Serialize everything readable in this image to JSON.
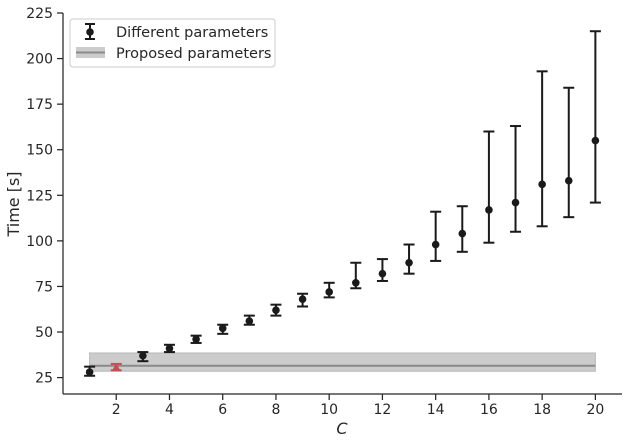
{
  "chart_data": {
    "type": "scatter",
    "title": "",
    "xlabel": "C",
    "ylabel": "Time [s]",
    "xlim": [
      0.0,
      21.0
    ],
    "ylim": [
      16,
      225
    ],
    "xticks": [
      "2",
      "4",
      "6",
      "8",
      "10",
      "12",
      "14",
      "16",
      "18",
      "20"
    ],
    "yticks": [
      "25",
      "50",
      "75",
      "100",
      "125",
      "150",
      "175",
      "200",
      "225"
    ],
    "grid": false,
    "legend": {
      "position": "top-left",
      "entries": [
        "Different parameters",
        "Proposed parameters"
      ]
    },
    "series": [
      {
        "name": "Different parameters",
        "marker": "circle",
        "color": "#1a1a1a",
        "points": [
          {
            "x": 1,
            "y": 28,
            "ylow": 26,
            "yhigh": 31
          },
          {
            "x": 3,
            "y": 37,
            "ylow": 34,
            "yhigh": 39
          },
          {
            "x": 4,
            "y": 41,
            "ylow": 39,
            "yhigh": 43
          },
          {
            "x": 5,
            "y": 46,
            "ylow": 44,
            "yhigh": 48
          },
          {
            "x": 6,
            "y": 52,
            "ylow": 49,
            "yhigh": 54
          },
          {
            "x": 7,
            "y": 56,
            "ylow": 54,
            "yhigh": 59
          },
          {
            "x": 8,
            "y": 62,
            "ylow": 59,
            "yhigh": 65
          },
          {
            "x": 9,
            "y": 68,
            "ylow": 64,
            "yhigh": 71
          },
          {
            "x": 10,
            "y": 72,
            "ylow": 69,
            "yhigh": 77
          },
          {
            "x": 11,
            "y": 77,
            "ylow": 74,
            "yhigh": 88
          },
          {
            "x": 12,
            "y": 82,
            "ylow": 78,
            "yhigh": 90
          },
          {
            "x": 13,
            "y": 88,
            "ylow": 82,
            "yhigh": 98
          },
          {
            "x": 14,
            "y": 98,
            "ylow": 89,
            "yhigh": 116
          },
          {
            "x": 15,
            "y": 104,
            "ylow": 94,
            "yhigh": 119
          },
          {
            "x": 16,
            "y": 117,
            "ylow": 99,
            "yhigh": 160
          },
          {
            "x": 17,
            "y": 121,
            "ylow": 105,
            "yhigh": 163
          },
          {
            "x": 18,
            "y": 131,
            "ylow": 108,
            "yhigh": 193
          },
          {
            "x": 19,
            "y": 133,
            "ylow": 113,
            "yhigh": 184
          },
          {
            "x": 20,
            "y": 155,
            "ylow": 121,
            "yhigh": 215
          }
        ]
      },
      {
        "name": "Proposed parameters",
        "marker": "triangle",
        "color": "#c44e52",
        "points": [
          {
            "x": 2,
            "y": 30.5,
            "ylow": 29,
            "yhigh": 32.5
          }
        ],
        "mean_line": {
          "y": 31.5,
          "from_x": 1,
          "to_x": 20,
          "color": "#8a8a8a"
        },
        "band": {
          "ylow": 28.5,
          "yhigh": 38.5,
          "from_x": 1,
          "to_x": 20,
          "color": "#cccccc"
        }
      }
    ]
  }
}
